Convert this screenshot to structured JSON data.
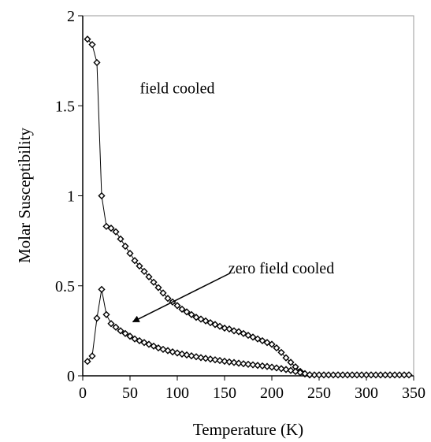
{
  "chart_data": {
    "type": "scatter",
    "title": "",
    "xlabel": "Temperature (K)",
    "ylabel": "Molar Susceptibility",
    "xlim": [
      0,
      350
    ],
    "ylim": [
      0,
      2
    ],
    "x_ticks": [
      "0",
      "50",
      "100",
      "150",
      "200",
      "250",
      "300",
      "350"
    ],
    "y_ticks": [
      "0",
      "0.5",
      "1",
      "1.5",
      "2"
    ],
    "grid": false,
    "legend": "none",
    "marker": "diamond-open",
    "series": [
      {
        "name": "field cooled",
        "line": true,
        "x": [
          5,
          10,
          15,
          20,
          25,
          30,
          35,
          40,
          45,
          50,
          55,
          60,
          65,
          70,
          75,
          80,
          85,
          90,
          95,
          100,
          105,
          110,
          115,
          120,
          125,
          130,
          135,
          140,
          145,
          150,
          155,
          160,
          165,
          170,
          175,
          180,
          185,
          190,
          195,
          200,
          205,
          210,
          215,
          220,
          225,
          230,
          235,
          240,
          245,
          250,
          255,
          260,
          265,
          270,
          275,
          280,
          285,
          290,
          295,
          300,
          305,
          310,
          315,
          320,
          325,
          330,
          335,
          340,
          345
        ],
        "y": [
          1.87,
          1.84,
          1.74,
          1.0,
          0.83,
          0.82,
          0.8,
          0.76,
          0.72,
          0.68,
          0.64,
          0.61,
          0.58,
          0.55,
          0.52,
          0.49,
          0.46,
          0.43,
          0.41,
          0.39,
          0.37,
          0.355,
          0.34,
          0.325,
          0.315,
          0.305,
          0.295,
          0.285,
          0.275,
          0.265,
          0.26,
          0.25,
          0.245,
          0.235,
          0.225,
          0.215,
          0.205,
          0.195,
          0.185,
          0.175,
          0.155,
          0.13,
          0.1,
          0.075,
          0.05,
          0.025,
          0.01,
          0.005,
          0.005,
          0.005,
          0.005,
          0.005,
          0.005,
          0.005,
          0.005,
          0.005,
          0.005,
          0.005,
          0.005,
          0.005,
          0.005,
          0.005,
          0.005,
          0.005,
          0.005,
          0.005,
          0.005,
          0.005,
          0.005
        ]
      },
      {
        "name": "zero field cooled",
        "line": true,
        "x": [
          5,
          10,
          15,
          20,
          25,
          30,
          35,
          40,
          45,
          50,
          55,
          60,
          65,
          70,
          75,
          80,
          85,
          90,
          95,
          100,
          105,
          110,
          115,
          120,
          125,
          130,
          135,
          140,
          145,
          150,
          155,
          160,
          165,
          170,
          175,
          180,
          185,
          190,
          195,
          200,
          205,
          210,
          215,
          220,
          225,
          230,
          235,
          240
        ],
        "y": [
          0.08,
          0.11,
          0.32,
          0.48,
          0.34,
          0.29,
          0.27,
          0.25,
          0.235,
          0.22,
          0.205,
          0.195,
          0.185,
          0.175,
          0.165,
          0.155,
          0.147,
          0.14,
          0.133,
          0.127,
          0.121,
          0.116,
          0.111,
          0.106,
          0.101,
          0.097,
          0.093,
          0.089,
          0.085,
          0.081,
          0.077,
          0.074,
          0.07,
          0.067,
          0.064,
          0.061,
          0.058,
          0.055,
          0.052,
          0.048,
          0.044,
          0.04,
          0.035,
          0.03,
          0.024,
          0.018,
          0.012,
          0.006
        ]
      }
    ],
    "annotations": [
      {
        "text": "field cooled",
        "x": 100,
        "y": 1.6
      },
      {
        "text": "zero field cooled",
        "x": 210,
        "y": 0.6,
        "arrow_to": {
          "x": 53,
          "y": 0.3
        }
      }
    ]
  }
}
